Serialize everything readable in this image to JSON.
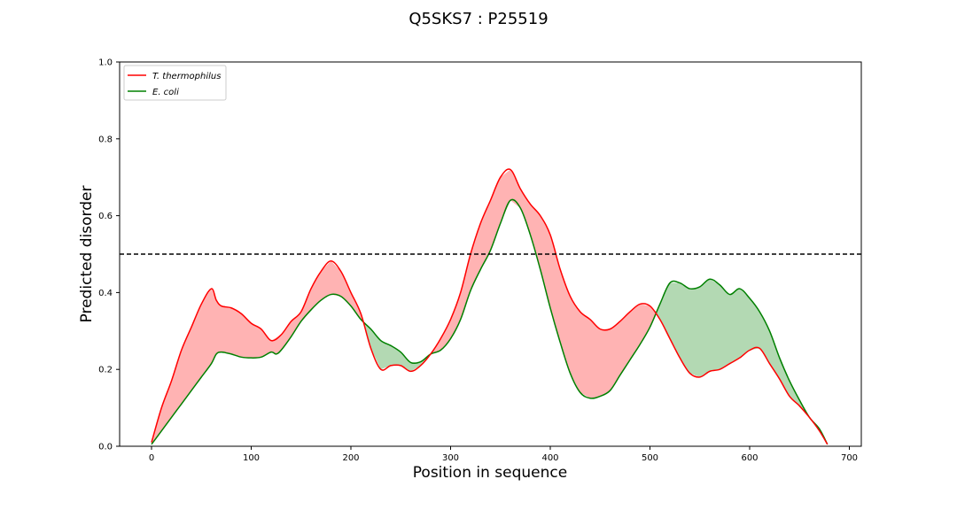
{
  "chart_data": {
    "type": "line",
    "title": "Q5SKS7 : P25519",
    "xlabel": "Position in sequence",
    "ylabel": "Predicted disorder",
    "xlim": [
      -32,
      712
    ],
    "ylim": [
      0.0,
      1.0
    ],
    "xticks": [
      0,
      100,
      200,
      300,
      400,
      500,
      600,
      700
    ],
    "yticks": [
      0.0,
      0.2,
      0.4,
      0.6,
      0.8,
      1.0
    ],
    "xtick_labels": [
      "0",
      "100",
      "200",
      "300",
      "400",
      "500",
      "600",
      "700"
    ],
    "ytick_labels": [
      "0.0",
      "0.2",
      "0.4",
      "0.6",
      "0.8",
      "1.0"
    ],
    "threshold": 0.5,
    "grid": false,
    "legend_position": "top-left",
    "series": [
      {
        "name": "T. thermophilus",
        "color": "#ff0000",
        "fill_color": "#ffb3b3",
        "x": [
          0,
          10,
          20,
          30,
          40,
          50,
          60,
          65,
          70,
          80,
          90,
          100,
          110,
          120,
          130,
          140,
          150,
          160,
          170,
          180,
          190,
          200,
          210,
          220,
          230,
          240,
          250,
          260,
          270,
          280,
          290,
          300,
          310,
          320,
          330,
          340,
          350,
          360,
          370,
          380,
          390,
          400,
          410,
          420,
          430,
          440,
          450,
          460,
          470,
          480,
          490,
          500,
          510,
          520,
          530,
          540,
          550,
          560,
          570,
          580,
          590,
          600,
          610,
          620,
          630,
          640,
          650,
          660,
          670,
          678
        ],
        "y": [
          0.01,
          0.1,
          0.17,
          0.25,
          0.31,
          0.37,
          0.41,
          0.38,
          0.365,
          0.36,
          0.345,
          0.32,
          0.305,
          0.275,
          0.29,
          0.325,
          0.35,
          0.41,
          0.455,
          0.482,
          0.455,
          0.4,
          0.345,
          0.255,
          0.2,
          0.21,
          0.21,
          0.195,
          0.21,
          0.24,
          0.28,
          0.33,
          0.4,
          0.5,
          0.58,
          0.64,
          0.7,
          0.72,
          0.67,
          0.63,
          0.6,
          0.55,
          0.46,
          0.39,
          0.35,
          0.33,
          0.305,
          0.305,
          0.325,
          0.35,
          0.37,
          0.365,
          0.33,
          0.28,
          0.23,
          0.19,
          0.18,
          0.195,
          0.2,
          0.215,
          0.23,
          0.25,
          0.255,
          0.215,
          0.175,
          0.13,
          0.105,
          0.075,
          0.04,
          0.005
        ]
      },
      {
        "name": "E. coli",
        "color": "#008000",
        "fill_color": "#b3d9b3",
        "x": [
          0,
          10,
          20,
          30,
          40,
          50,
          60,
          65,
          70,
          80,
          90,
          100,
          110,
          120,
          125,
          130,
          140,
          150,
          160,
          170,
          180,
          190,
          200,
          210,
          220,
          230,
          240,
          250,
          260,
          270,
          280,
          290,
          300,
          310,
          320,
          330,
          340,
          350,
          360,
          370,
          380,
          390,
          400,
          410,
          420,
          430,
          440,
          450,
          460,
          470,
          480,
          490,
          500,
          510,
          520,
          530,
          540,
          550,
          560,
          570,
          580,
          590,
          600,
          610,
          620,
          630,
          640,
          650,
          660,
          670,
          678
        ],
        "y": [
          0.005,
          0.04,
          0.075,
          0.11,
          0.145,
          0.18,
          0.215,
          0.24,
          0.245,
          0.24,
          0.232,
          0.23,
          0.232,
          0.245,
          0.24,
          0.25,
          0.285,
          0.325,
          0.355,
          0.38,
          0.395,
          0.39,
          0.365,
          0.33,
          0.305,
          0.275,
          0.262,
          0.245,
          0.218,
          0.22,
          0.24,
          0.25,
          0.28,
          0.33,
          0.405,
          0.46,
          0.51,
          0.58,
          0.64,
          0.62,
          0.55,
          0.46,
          0.36,
          0.27,
          0.19,
          0.14,
          0.125,
          0.13,
          0.145,
          0.185,
          0.225,
          0.265,
          0.31,
          0.37,
          0.425,
          0.425,
          0.41,
          0.415,
          0.435,
          0.42,
          0.395,
          0.41,
          0.385,
          0.35,
          0.3,
          0.23,
          0.17,
          0.12,
          0.075,
          0.045,
          0.005
        ]
      }
    ]
  }
}
